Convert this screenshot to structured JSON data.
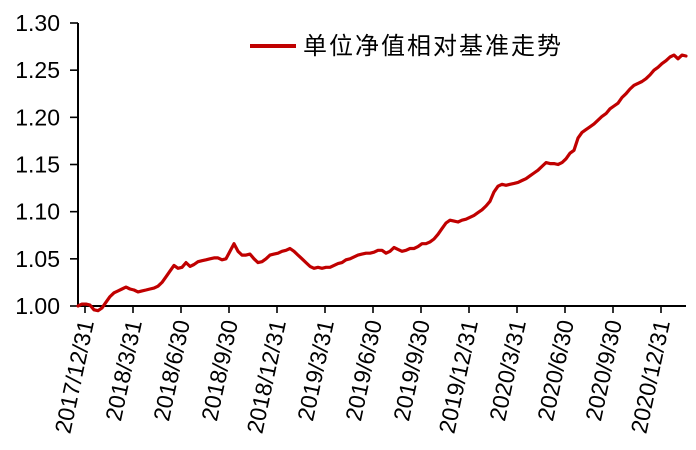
{
  "colors": {
    "background": "#FFFFFF",
    "axis": "#000000",
    "text": "#000000",
    "line": "#C00000"
  },
  "chart_data": {
    "type": "line",
    "title": "",
    "grid": false,
    "legend": {
      "label": "单位净值相对基准走势",
      "position": "top-center",
      "marker": "red-line"
    },
    "y_axis": {
      "min": 1.0,
      "max": 1.3,
      "tick_step": 0.05,
      "tick_labels": [
        "1.00",
        "1.05",
        "1.10",
        "1.15",
        "1.20",
        "1.25",
        "1.30"
      ]
    },
    "x_axis": {
      "tick_labels": [
        "2017/12/31",
        "2018/3/31",
        "2018/6/30",
        "2018/9/30",
        "2018/12/31",
        "2019/3/31",
        "2019/6/30",
        "2019/9/30",
        "2019/12/31",
        "2020/3/31",
        "2020/6/30",
        "2020/9/30",
        "2020/12/31"
      ],
      "label_rotation_deg": -78
    },
    "series": [
      {
        "name": "单位净值相对基准走势",
        "color": "#C00000",
        "x_start": "2017/12/31",
        "x_end_approx": "2021/01",
        "sampling": "evenly-spaced-over-x-span",
        "values": [
          1.0,
          1.002,
          1.002,
          1.001,
          0.996,
          0.995,
          0.998,
          1.004,
          1.01,
          1.014,
          1.016,
          1.018,
          1.02,
          1.018,
          1.017,
          1.015,
          1.016,
          1.017,
          1.018,
          1.019,
          1.021,
          1.025,
          1.031,
          1.037,
          1.043,
          1.04,
          1.041,
          1.046,
          1.042,
          1.044,
          1.047,
          1.048,
          1.049,
          1.05,
          1.051,
          1.051,
          1.049,
          1.05,
          1.058,
          1.066,
          1.058,
          1.054,
          1.054,
          1.055,
          1.05,
          1.046,
          1.047,
          1.05,
          1.054,
          1.055,
          1.056,
          1.058,
          1.059,
          1.061,
          1.058,
          1.054,
          1.05,
          1.046,
          1.042,
          1.04,
          1.041,
          1.04,
          1.041,
          1.041,
          1.043,
          1.045,
          1.046,
          1.049,
          1.05,
          1.052,
          1.054,
          1.055,
          1.056,
          1.056,
          1.057,
          1.059,
          1.059,
          1.056,
          1.058,
          1.062,
          1.06,
          1.058,
          1.059,
          1.061,
          1.061,
          1.063,
          1.066,
          1.066,
          1.068,
          1.071,
          1.076,
          1.082,
          1.088,
          1.091,
          1.09,
          1.089,
          1.091,
          1.092,
          1.094,
          1.096,
          1.099,
          1.102,
          1.106,
          1.111,
          1.121,
          1.127,
          1.129,
          1.128,
          1.129,
          1.13,
          1.131,
          1.133,
          1.135,
          1.138,
          1.141,
          1.144,
          1.148,
          1.152,
          1.151,
          1.151,
          1.15,
          1.152,
          1.156,
          1.162,
          1.165,
          1.178,
          1.184,
          1.187,
          1.19,
          1.193,
          1.197,
          1.201,
          1.204,
          1.209,
          1.212,
          1.215,
          1.221,
          1.225,
          1.23,
          1.234,
          1.236,
          1.238,
          1.241,
          1.245,
          1.25,
          1.253,
          1.257,
          1.26,
          1.264,
          1.266,
          1.262,
          1.266,
          1.265
        ]
      }
    ]
  }
}
